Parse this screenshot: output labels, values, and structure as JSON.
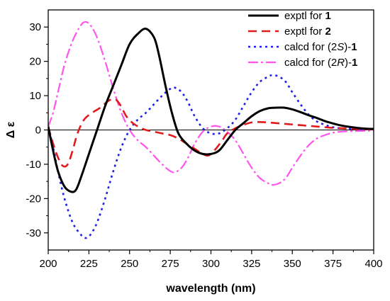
{
  "chart_data": {
    "type": "line",
    "xlabel": "wavelength (nm)",
    "ylabel": "Δ ε",
    "xlim": [
      200,
      400
    ],
    "ylim": [
      -35,
      35
    ],
    "x_ticks": [
      200,
      225,
      250,
      275,
      300,
      325,
      350,
      375,
      400
    ],
    "y_ticks": [
      -30,
      -20,
      -10,
      0,
      10,
      20,
      30
    ],
    "zero_line": true,
    "legend_position": "top-right",
    "series": [
      {
        "name": "exptl for 1",
        "legend": [
          {
            "t": "exptl for "
          },
          {
            "t": "1",
            "style": "b"
          }
        ],
        "color": "#000000",
        "dash": "solid",
        "points": [
          [
            200,
            1
          ],
          [
            203,
            -6
          ],
          [
            206,
            -12
          ],
          [
            210,
            -16.5
          ],
          [
            214,
            -18
          ],
          [
            217,
            -17.5
          ],
          [
            220,
            -14
          ],
          [
            225,
            -7
          ],
          [
            230,
            0
          ],
          [
            235,
            7
          ],
          [
            240,
            13
          ],
          [
            245,
            19
          ],
          [
            250,
            25
          ],
          [
            255,
            28
          ],
          [
            260,
            29.5
          ],
          [
            265,
            27
          ],
          [
            268,
            22
          ],
          [
            272,
            13
          ],
          [
            276,
            5
          ],
          [
            280,
            -1
          ],
          [
            285,
            -4
          ],
          [
            290,
            -6
          ],
          [
            295,
            -7
          ],
          [
            300,
            -7
          ],
          [
            305,
            -6
          ],
          [
            310,
            -3
          ],
          [
            315,
            0
          ],
          [
            320,
            2
          ],
          [
            325,
            4
          ],
          [
            330,
            5.5
          ],
          [
            335,
            6.3
          ],
          [
            340,
            6.5
          ],
          [
            345,
            6.5
          ],
          [
            350,
            6
          ],
          [
            355,
            5.2
          ],
          [
            360,
            4.3
          ],
          [
            365,
            3.5
          ],
          [
            370,
            2.6
          ],
          [
            375,
            1.9
          ],
          [
            380,
            1.3
          ],
          [
            385,
            0.9
          ],
          [
            390,
            0.6
          ],
          [
            395,
            0.4
          ],
          [
            400,
            0.3
          ]
        ]
      },
      {
        "name": "exptl for 2",
        "legend": [
          {
            "t": "exptl for "
          },
          {
            "t": "2",
            "style": "b"
          }
        ],
        "color": "#e31a1c",
        "dash": "12 7",
        "points": [
          [
            200,
            1
          ],
          [
            203,
            -4
          ],
          [
            206,
            -8
          ],
          [
            209,
            -10.5
          ],
          [
            212,
            -10
          ],
          [
            215,
            -6
          ],
          [
            218,
            -1
          ],
          [
            222,
            3
          ],
          [
            227,
            5
          ],
          [
            232,
            6.5
          ],
          [
            237,
            8.5
          ],
          [
            241,
            9
          ],
          [
            244,
            7.5
          ],
          [
            248,
            4
          ],
          [
            252,
            2
          ],
          [
            256,
            0.8
          ],
          [
            260,
            0
          ],
          [
            265,
            -0.5
          ],
          [
            270,
            -1
          ],
          [
            275,
            -1.5
          ],
          [
            280,
            -2.5
          ],
          [
            285,
            -4
          ],
          [
            290,
            -5.5
          ],
          [
            295,
            -7
          ],
          [
            298,
            -7.5
          ],
          [
            300,
            -7
          ],
          [
            303,
            -5.5
          ],
          [
            307,
            -3
          ],
          [
            310,
            -1
          ],
          [
            315,
            0.5
          ],
          [
            320,
            1.5
          ],
          [
            325,
            2.2
          ],
          [
            330,
            2.3
          ],
          [
            335,
            2.2
          ],
          [
            340,
            2
          ],
          [
            345,
            1.8
          ],
          [
            350,
            1.6
          ],
          [
            355,
            1.4
          ],
          [
            360,
            1.2
          ],
          [
            365,
            1
          ],
          [
            370,
            0.8
          ],
          [
            375,
            0.6
          ],
          [
            380,
            0.5
          ],
          [
            385,
            0.4
          ],
          [
            390,
            0.3
          ],
          [
            400,
            0.2
          ]
        ]
      },
      {
        "name": "calcd for (2S)-1",
        "legend": [
          {
            "t": "calcd for (2"
          },
          {
            "t": "S",
            "style": "i"
          },
          {
            "t": ")-"
          },
          {
            "t": "1",
            "style": "b"
          }
        ],
        "color": "#1f1fe6",
        "dash": "3 5",
        "points": [
          [
            200,
            1
          ],
          [
            203,
            -5
          ],
          [
            206,
            -12
          ],
          [
            210,
            -20
          ],
          [
            215,
            -27
          ],
          [
            220,
            -30.5
          ],
          [
            223,
            -31.5
          ],
          [
            226,
            -30.5
          ],
          [
            230,
            -27
          ],
          [
            235,
            -20
          ],
          [
            240,
            -12
          ],
          [
            245,
            -5
          ],
          [
            250,
            0
          ],
          [
            255,
            3
          ],
          [
            260,
            5
          ],
          [
            265,
            7.5
          ],
          [
            270,
            10
          ],
          [
            275,
            12
          ],
          [
            278,
            12.3
          ],
          [
            282,
            11
          ],
          [
            286,
            8
          ],
          [
            290,
            4
          ],
          [
            295,
            0.5
          ],
          [
            300,
            -1
          ],
          [
            305,
            -1
          ],
          [
            310,
            0.5
          ],
          [
            315,
            3
          ],
          [
            320,
            7
          ],
          [
            325,
            11
          ],
          [
            330,
            14
          ],
          [
            335,
            15.5
          ],
          [
            338,
            16
          ],
          [
            342,
            15.5
          ],
          [
            346,
            14
          ],
          [
            350,
            11
          ],
          [
            355,
            7.5
          ],
          [
            360,
            4.5
          ],
          [
            365,
            2.5
          ],
          [
            370,
            1.5
          ],
          [
            375,
            0.8
          ],
          [
            380,
            0.5
          ],
          [
            390,
            0.3
          ],
          [
            400,
            0.2
          ]
        ]
      },
      {
        "name": "calcd for (2R)-1",
        "legend": [
          {
            "t": "calcd for (2"
          },
          {
            "t": "R",
            "style": "i"
          },
          {
            "t": ")-"
          },
          {
            "t": "1",
            "style": "b"
          }
        ],
        "color": "#ff55ee",
        "dash": "14 4 3 4",
        "points": [
          [
            200,
            1
          ],
          [
            203,
            5
          ],
          [
            206,
            11
          ],
          [
            210,
            19
          ],
          [
            215,
            26
          ],
          [
            220,
            30.5
          ],
          [
            223,
            31.5
          ],
          [
            226,
            30.5
          ],
          [
            230,
            27
          ],
          [
            235,
            20
          ],
          [
            240,
            12
          ],
          [
            245,
            5
          ],
          [
            250,
            0
          ],
          [
            255,
            -3
          ],
          [
            260,
            -5
          ],
          [
            265,
            -7.5
          ],
          [
            270,
            -10
          ],
          [
            275,
            -12
          ],
          [
            278,
            -12.3
          ],
          [
            282,
            -11
          ],
          [
            286,
            -8
          ],
          [
            290,
            -4
          ],
          [
            295,
            -0.5
          ],
          [
            300,
            1
          ],
          [
            305,
            1
          ],
          [
            310,
            -0.5
          ],
          [
            315,
            -3
          ],
          [
            320,
            -7
          ],
          [
            325,
            -11
          ],
          [
            330,
            -14
          ],
          [
            335,
            -15.5
          ],
          [
            338,
            -16
          ],
          [
            342,
            -15.5
          ],
          [
            346,
            -14
          ],
          [
            350,
            -11
          ],
          [
            355,
            -7.5
          ],
          [
            360,
            -4.5
          ],
          [
            365,
            -2.5
          ],
          [
            370,
            -1.5
          ],
          [
            375,
            -0.8
          ],
          [
            380,
            -0.5
          ],
          [
            390,
            -0.3
          ],
          [
            400,
            -0.2
          ]
        ]
      }
    ]
  }
}
